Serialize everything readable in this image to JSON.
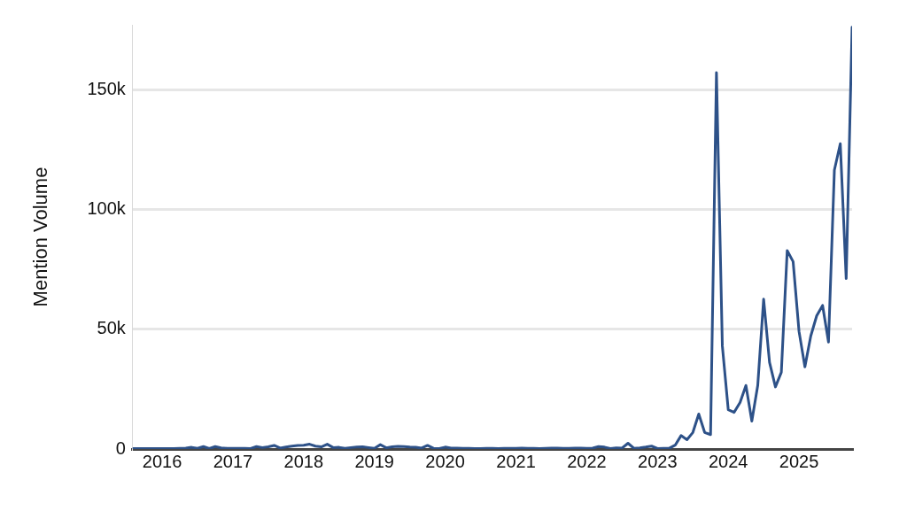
{
  "chart_data": {
    "type": "line",
    "ylabel": "Mention Volume",
    "x": [
      "2015-08",
      "2015-09",
      "2015-10",
      "2015-11",
      "2015-12",
      "2016-01",
      "2016-02",
      "2016-03",
      "2016-04",
      "2016-05",
      "2016-06",
      "2016-07",
      "2016-08",
      "2016-09",
      "2016-10",
      "2016-11",
      "2016-12",
      "2017-01",
      "2017-02",
      "2017-03",
      "2017-04",
      "2017-05",
      "2017-06",
      "2017-07",
      "2017-08",
      "2017-09",
      "2017-10",
      "2017-11",
      "2017-12",
      "2018-01",
      "2018-02",
      "2018-03",
      "2018-04",
      "2018-05",
      "2018-06",
      "2018-07",
      "2018-08",
      "2018-09",
      "2018-10",
      "2018-11",
      "2018-12",
      "2019-01",
      "2019-02",
      "2019-03",
      "2019-04",
      "2019-05",
      "2019-06",
      "2019-07",
      "2019-08",
      "2019-09",
      "2019-10",
      "2019-11",
      "2019-12",
      "2020-01",
      "2020-02",
      "2020-03",
      "2020-04",
      "2020-05",
      "2020-06",
      "2020-07",
      "2020-08",
      "2020-09",
      "2020-10",
      "2020-11",
      "2020-12",
      "2021-01",
      "2021-02",
      "2021-03",
      "2021-04",
      "2021-05",
      "2021-06",
      "2021-07",
      "2021-08",
      "2021-09",
      "2021-10",
      "2021-11",
      "2021-12",
      "2022-01",
      "2022-02",
      "2022-03",
      "2022-04",
      "2022-05",
      "2022-06",
      "2022-07",
      "2022-08",
      "2022-09",
      "2022-10",
      "2022-11",
      "2022-12",
      "2023-01",
      "2023-02",
      "2023-03",
      "2023-04",
      "2023-05",
      "2023-06",
      "2023-07",
      "2023-08",
      "2023-09",
      "2023-10",
      "2023-11",
      "2023-12",
      "2024-01",
      "2024-02",
      "2024-03",
      "2024-04",
      "2024-05",
      "2024-06",
      "2024-07",
      "2024-08",
      "2024-09",
      "2024-10",
      "2024-11",
      "2024-12",
      "2025-01",
      "2025-02",
      "2025-03",
      "2025-04",
      "2025-05",
      "2025-06",
      "2025-07",
      "2025-08",
      "2025-09",
      "2025-10"
    ],
    "series": [
      {
        "color": "#2d5188",
        "values": [
          0.2,
          0.2,
          0.2,
          0.2,
          0.2,
          0.2,
          0.2,
          0.2,
          0.3,
          0.4,
          0.7,
          0.3,
          1.0,
          0.2,
          1.0,
          0.5,
          0.3,
          0.3,
          0.3,
          0.3,
          0.2,
          1.0,
          0.6,
          0.9,
          1.5,
          0.4,
          0.8,
          1.2,
          1.5,
          1.6,
          2.0,
          1.2,
          0.9,
          2.0,
          0.6,
          0.7,
          0.3,
          0.6,
          0.8,
          0.9,
          0.6,
          0.3,
          1.8,
          0.5,
          0.9,
          1.1,
          1.0,
          0.8,
          0.7,
          0.4,
          1.5,
          0.3,
          0.2,
          0.8,
          0.4,
          0.4,
          0.3,
          0.3,
          0.2,
          0.2,
          0.3,
          0.3,
          0.2,
          0.3,
          0.3,
          0.3,
          0.4,
          0.3,
          0.3,
          0.2,
          0.3,
          0.4,
          0.4,
          0.3,
          0.3,
          0.4,
          0.4,
          0.3,
          0.4,
          1.0,
          0.8,
          0.2,
          0.5,
          0.4,
          2.4,
          0.3,
          0.5,
          0.8,
          1.2,
          0.2,
          0.3,
          0.3,
          1.6,
          5.6,
          3.9,
          6.9,
          14.6,
          6.9,
          6,
          157,
          43,
          16.4,
          15.3,
          19.4,
          26.5,
          11.6,
          26.5,
          62.5,
          36.2,
          25.9,
          32,
          82.8,
          78.2,
          49.1,
          34.3,
          47.2,
          55.6,
          59.9,
          44.6,
          116.4,
          127.4,
          71.1,
          176
        ]
      }
    ],
    "xlim": [
      "2015-08",
      "2025-10"
    ],
    "xticks": [
      {
        "value": "2016-01",
        "label": "2016"
      },
      {
        "value": "2017-01",
        "label": "2017"
      },
      {
        "value": "2018-01",
        "label": "2018"
      },
      {
        "value": "2019-01",
        "label": "2019"
      },
      {
        "value": "2020-01",
        "label": "2020"
      },
      {
        "value": "2021-01",
        "label": "2021"
      },
      {
        "value": "2022-01",
        "label": "2022"
      },
      {
        "value": "2023-01",
        "label": "2023"
      },
      {
        "value": "2024-01",
        "label": "2024"
      },
      {
        "value": "2025-01",
        "label": "2025"
      }
    ],
    "ylim": [
      0,
      177
    ],
    "yticks": [
      0,
      {
        "value": 50,
        "label": "50k"
      },
      {
        "value": 100,
        "label": "100k"
      },
      {
        "value": 150,
        "label": "150k"
      }
    ],
    "grid": "y",
    "legend": false,
    "marker": "none",
    "line_style": "solid"
  }
}
